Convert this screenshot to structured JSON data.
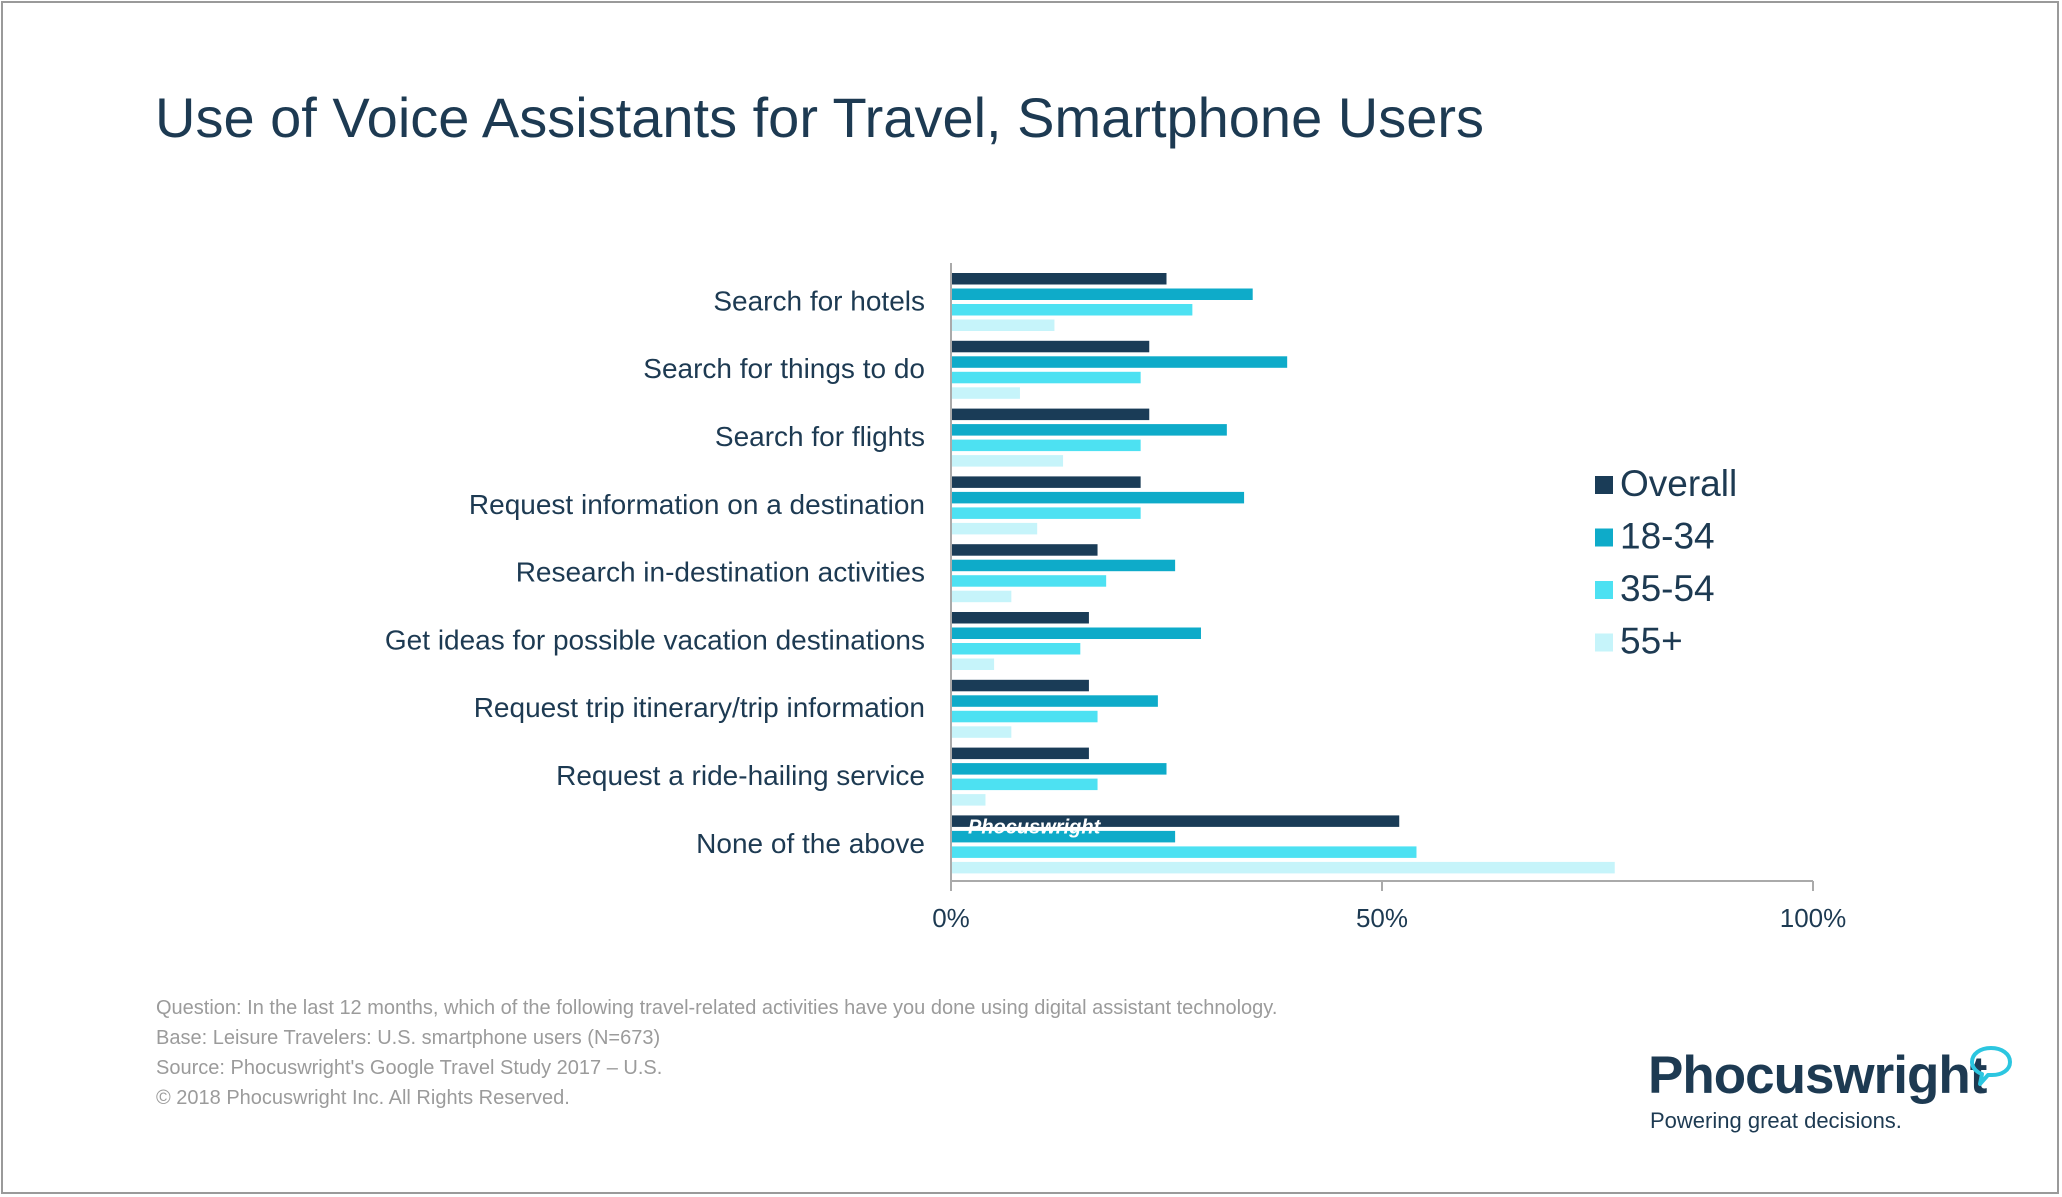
{
  "chart_data": {
    "type": "bar",
    "orientation": "horizontal",
    "title": "Use of Voice Assistants for Travel, Smartphone Users",
    "categories": [
      "Search for hotels",
      "Search for things to do",
      "Search for flights",
      "Request information on a destination",
      "Research in-destination activities",
      "Get ideas for possible vacation destinations",
      "Request trip itinerary/trip information",
      "Request a ride-hailing service",
      "None of the above"
    ],
    "series": [
      {
        "name": "Overall",
        "color": "#1a3c57",
        "values": [
          25,
          23,
          23,
          22,
          17,
          16,
          16,
          16,
          52
        ]
      },
      {
        "name": "18-34",
        "color": "#0eabc9",
        "values": [
          35,
          39,
          32,
          34,
          26,
          29,
          24,
          25,
          26
        ]
      },
      {
        "name": "35-54",
        "color": "#4de1f2",
        "values": [
          28,
          22,
          22,
          22,
          18,
          15,
          17,
          17,
          54
        ]
      },
      {
        "name": "55+",
        "color": "#c6f4fa",
        "values": [
          12,
          8,
          13,
          10,
          7,
          5,
          7,
          4,
          77
        ]
      }
    ],
    "xlim": [
      0,
      100
    ],
    "x_ticks": [
      "0%",
      "50%",
      "100%"
    ],
    "xlabel": "",
    "ylabel": "",
    "grid": false,
    "legend_position": "right"
  },
  "watermark_text": "Phocuswright",
  "notes": [
    "Question: In the last 12 months, which of the following travel-related activities have you done using digital assistant technology.",
    "Base: Leisure Travelers: U.S. smartphone users (N=673)",
    "Source: Phocuswright's Google Travel Study 2017 – U.S.",
    "© 2018 Phocuswright Inc. All Rights Reserved."
  ],
  "brand": {
    "name": "Phocuswright",
    "tagline": "Powering great decisions."
  }
}
